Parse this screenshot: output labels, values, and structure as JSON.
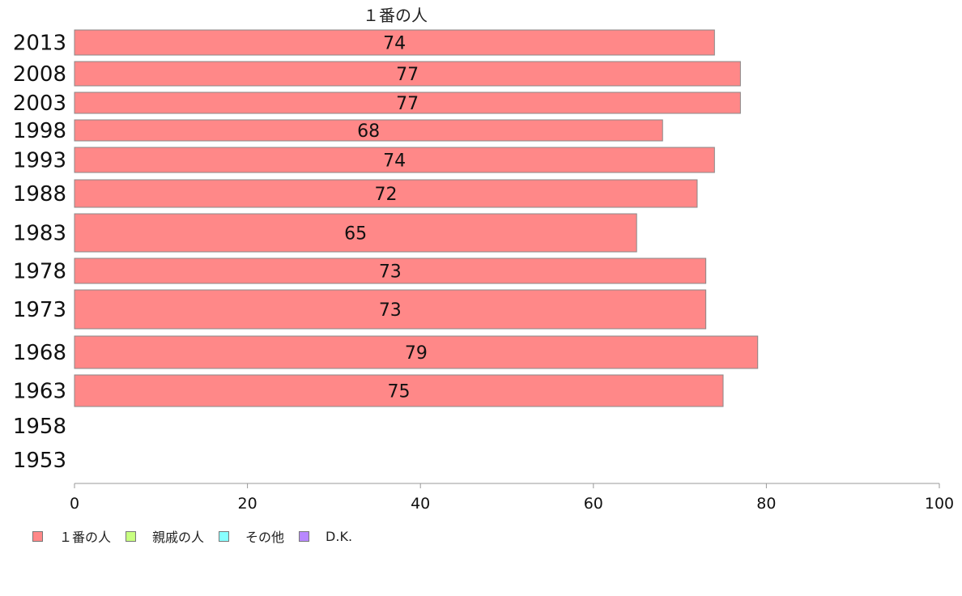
{
  "chart_data": {
    "type": "bar",
    "orientation": "horizontal",
    "title": "１番の人",
    "categories": [
      "2013",
      "2008",
      "2003",
      "1998",
      "1993",
      "1988",
      "1983",
      "1978",
      "1973",
      "1968",
      "1963",
      "1958",
      "1953"
    ],
    "series": [
      {
        "name": "１番の人",
        "color": "#ff8888",
        "values": [
          74,
          77,
          77,
          68,
          74,
          72,
          65,
          73,
          73,
          79,
          75,
          null,
          null
        ]
      }
    ],
    "data_labels": [
      "74",
      "77",
      "77",
      "68",
      "74",
      "72",
      "65",
      "73",
      "73",
      "79",
      "75",
      "",
      ""
    ],
    "xlim": [
      0,
      100
    ],
    "xticks": [
      "0",
      "20",
      "40",
      "60",
      "80",
      "100"
    ],
    "grid": false,
    "legend_position": "bottom-left"
  },
  "legend": [
    {
      "label": "１番の人",
      "color": "#ff8888"
    },
    {
      "label": "親戚の人",
      "color": "#c8ff80"
    },
    {
      "label": "その他",
      "color": "#88ffff"
    },
    {
      "label": "D.K.",
      "color": "#b888ff"
    }
  ]
}
